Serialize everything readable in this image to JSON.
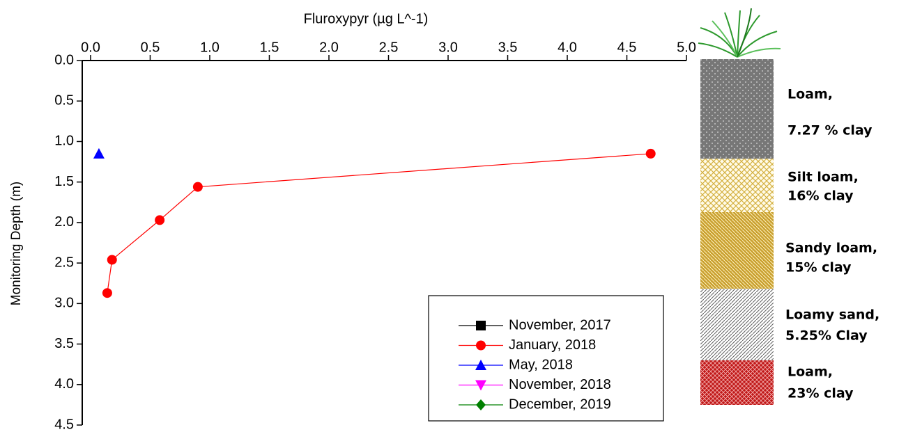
{
  "chart_data": {
    "type": "line",
    "x_label": "Fluroxypyr (µg L^-1)",
    "y_label": "Monitoring Depth (m)",
    "xlim": [
      -0.07,
      5.0
    ],
    "xticks": [
      {
        "value": 0,
        "label": "0.0"
      },
      0.5,
      {
        "value": 1,
        "label": "1.0"
      },
      1.5,
      {
        "value": 2,
        "label": "2.0"
      },
      2.5,
      {
        "value": 3,
        "label": "3.0"
      },
      3.5,
      {
        "value": 4,
        "label": "4.0"
      },
      4.5,
      {
        "value": 5,
        "label": "5.0"
      }
    ],
    "ylim": [
      0,
      4.5
    ],
    "y_inverted": true,
    "yticks": [
      {
        "value": 0,
        "label": "0.0"
      },
      0.5,
      {
        "value": 1,
        "label": "1.0"
      },
      1.5,
      {
        "value": 2,
        "label": "2.0"
      },
      2.5,
      {
        "value": 3,
        "label": "3.0"
      },
      3.5,
      {
        "value": 4,
        "label": "4.0"
      },
      4.5
    ],
    "series": [
      {
        "name": "November, 2017",
        "color": "#000000",
        "marker": "square",
        "x": [],
        "values": []
      },
      {
        "name": "January, 2018",
        "color": "#ff0000",
        "marker": "circle",
        "x": [
          4.7,
          0.9,
          0.58,
          0.18,
          0.14
        ],
        "values": [
          1.15,
          1.56,
          1.97,
          2.46,
          2.87
        ]
      },
      {
        "name": "May, 2018",
        "color": "#0000ff",
        "marker": "triangle-up",
        "x": [
          0.07
        ],
        "values": [
          1.15
        ]
      },
      {
        "name": "November, 2018",
        "color": "#ff00ff",
        "marker": "triangle-down",
        "x": [],
        "values": []
      },
      {
        "name": "December, 2019",
        "color": "#008000",
        "marker": "diamond",
        "x": [],
        "values": []
      }
    ]
  },
  "soil_layers": [
    {
      "lines": [
        "Loam,",
        "7.27 % clay"
      ]
    },
    {
      "lines": [
        "Silt loam,",
        "16% clay"
      ]
    },
    {
      "lines": [
        "Sandy loam,",
        "15% clay"
      ]
    },
    {
      "lines": [
        "Loamy sand,",
        "5.25% Clay"
      ]
    },
    {
      "lines": [
        "Loam,",
        "23% clay"
      ]
    }
  ]
}
